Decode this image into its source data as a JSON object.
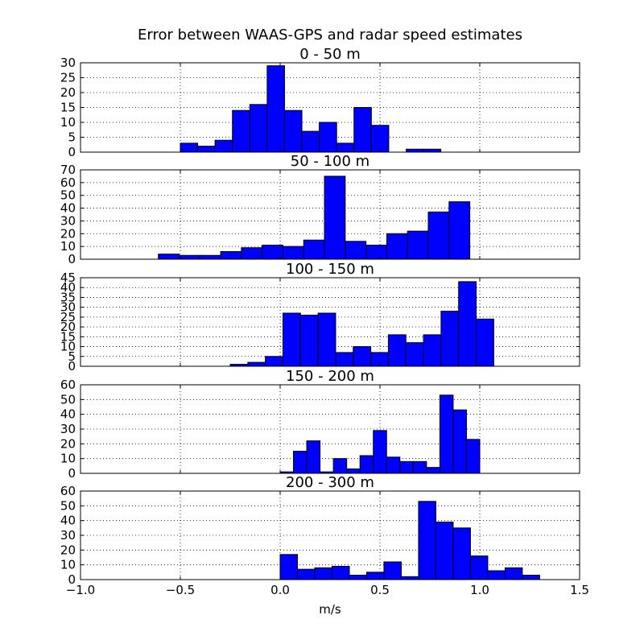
{
  "figure": {
    "title": "Error between WAAS-GPS and radar speed estimates",
    "xlabel": "m/s"
  },
  "chart_data": [
    {
      "type": "bar",
      "title": "0 - 50 m",
      "xlim": [
        -1.0,
        1.5
      ],
      "ylim": [
        0,
        30
      ],
      "yticks": [
        0,
        5,
        10,
        15,
        20,
        25,
        30
      ],
      "xticks": [
        -1.0,
        -0.5,
        0.0,
        0.5,
        1.0,
        1.5
      ],
      "show_xticklabels": false,
      "grid": true,
      "bins": [
        {
          "x0": -0.5,
          "x1": -0.413,
          "value": 3
        },
        {
          "x0": -0.413,
          "x1": -0.326,
          "value": 2
        },
        {
          "x0": -0.326,
          "x1": -0.239,
          "value": 4
        },
        {
          "x0": -0.239,
          "x1": -0.152,
          "value": 14
        },
        {
          "x0": -0.152,
          "x1": -0.065,
          "value": 16
        },
        {
          "x0": -0.065,
          "x1": 0.022,
          "value": 29
        },
        {
          "x0": 0.022,
          "x1": 0.109,
          "value": 14
        },
        {
          "x0": 0.109,
          "x1": 0.196,
          "value": 7
        },
        {
          "x0": 0.196,
          "x1": 0.283,
          "value": 10
        },
        {
          "x0": 0.283,
          "x1": 0.37,
          "value": 3
        },
        {
          "x0": 0.37,
          "x1": 0.457,
          "value": 15
        },
        {
          "x0": 0.457,
          "x1": 0.544,
          "value": 9
        },
        {
          "x0": 0.544,
          "x1": 0.631,
          "value": 0
        },
        {
          "x0": 0.631,
          "x1": 0.718,
          "value": 1
        },
        {
          "x0": 0.718,
          "x1": 0.805,
          "value": 1
        }
      ]
    },
    {
      "type": "bar",
      "title": "50 - 100 m",
      "xlim": [
        -1.0,
        1.5
      ],
      "ylim": [
        0,
        70
      ],
      "yticks": [
        0,
        10,
        20,
        30,
        40,
        50,
        60,
        70
      ],
      "xticks": [
        -1.0,
        -0.5,
        0.0,
        0.5,
        1.0,
        1.5
      ],
      "show_xticklabels": false,
      "grid": true,
      "bins": [
        {
          "x0": -0.61,
          "x1": -0.506,
          "value": 4
        },
        {
          "x0": -0.506,
          "x1": -0.402,
          "value": 3
        },
        {
          "x0": -0.402,
          "x1": -0.298,
          "value": 3
        },
        {
          "x0": -0.298,
          "x1": -0.194,
          "value": 6
        },
        {
          "x0": -0.194,
          "x1": -0.09,
          "value": 9
        },
        {
          "x0": -0.09,
          "x1": 0.014,
          "value": 11
        },
        {
          "x0": 0.014,
          "x1": 0.118,
          "value": 10
        },
        {
          "x0": 0.118,
          "x1": 0.222,
          "value": 15
        },
        {
          "x0": 0.222,
          "x1": 0.326,
          "value": 65
        },
        {
          "x0": 0.326,
          "x1": 0.43,
          "value": 14
        },
        {
          "x0": 0.43,
          "x1": 0.534,
          "value": 11
        },
        {
          "x0": 0.534,
          "x1": 0.638,
          "value": 20
        },
        {
          "x0": 0.638,
          "x1": 0.742,
          "value": 22
        },
        {
          "x0": 0.742,
          "x1": 0.846,
          "value": 37
        },
        {
          "x0": 0.846,
          "x1": 0.95,
          "value": 45
        }
      ]
    },
    {
      "type": "bar",
      "title": "100 - 150 m",
      "xlim": [
        -1.0,
        1.5
      ],
      "ylim": [
        0,
        45
      ],
      "yticks": [
        0,
        5,
        10,
        15,
        20,
        25,
        30,
        35,
        40,
        45
      ],
      "xticks": [
        -1.0,
        -0.5,
        0.0,
        0.5,
        1.0,
        1.5
      ],
      "show_xticklabels": false,
      "grid": true,
      "bins": [
        {
          "x0": -0.25,
          "x1": -0.162,
          "value": 1
        },
        {
          "x0": -0.162,
          "x1": -0.074,
          "value": 2
        },
        {
          "x0": -0.074,
          "x1": 0.014,
          "value": 5
        },
        {
          "x0": 0.014,
          "x1": 0.102,
          "value": 27
        },
        {
          "x0": 0.102,
          "x1": 0.19,
          "value": 26
        },
        {
          "x0": 0.19,
          "x1": 0.278,
          "value": 27
        },
        {
          "x0": 0.278,
          "x1": 0.366,
          "value": 7
        },
        {
          "x0": 0.366,
          "x1": 0.454,
          "value": 10
        },
        {
          "x0": 0.454,
          "x1": 0.542,
          "value": 7
        },
        {
          "x0": 0.542,
          "x1": 0.63,
          "value": 16
        },
        {
          "x0": 0.63,
          "x1": 0.718,
          "value": 12
        },
        {
          "x0": 0.718,
          "x1": 0.806,
          "value": 16
        },
        {
          "x0": 0.806,
          "x1": 0.894,
          "value": 28
        },
        {
          "x0": 0.894,
          "x1": 0.982,
          "value": 43
        },
        {
          "x0": 0.982,
          "x1": 1.07,
          "value": 24
        }
      ]
    },
    {
      "type": "bar",
      "title": "150 - 200 m",
      "xlim": [
        -1.0,
        1.5
      ],
      "ylim": [
        0,
        60
      ],
      "yticks": [
        0,
        10,
        20,
        30,
        40,
        50,
        60
      ],
      "xticks": [
        -1.0,
        -0.5,
        0.0,
        0.5,
        1.0,
        1.5
      ],
      "show_xticklabels": false,
      "grid": true,
      "bins": [
        {
          "x0": 0.0,
          "x1": 0.0667,
          "value": 1
        },
        {
          "x0": 0.0667,
          "x1": 0.1333,
          "value": 15
        },
        {
          "x0": 0.1333,
          "x1": 0.2,
          "value": 22
        },
        {
          "x0": 0.2,
          "x1": 0.2667,
          "value": 1
        },
        {
          "x0": 0.2667,
          "x1": 0.3333,
          "value": 10
        },
        {
          "x0": 0.3333,
          "x1": 0.4,
          "value": 3
        },
        {
          "x0": 0.4,
          "x1": 0.4667,
          "value": 12
        },
        {
          "x0": 0.4667,
          "x1": 0.5333,
          "value": 29
        },
        {
          "x0": 0.5333,
          "x1": 0.6,
          "value": 11
        },
        {
          "x0": 0.6,
          "x1": 0.6667,
          "value": 8
        },
        {
          "x0": 0.6667,
          "x1": 0.7333,
          "value": 8
        },
        {
          "x0": 0.7333,
          "x1": 0.8,
          "value": 4
        },
        {
          "x0": 0.8,
          "x1": 0.8667,
          "value": 53
        },
        {
          "x0": 0.8667,
          "x1": 0.9333,
          "value": 43
        },
        {
          "x0": 0.9333,
          "x1": 1.0,
          "value": 23
        }
      ]
    },
    {
      "type": "bar",
      "title": "200 - 300 m",
      "xlim": [
        -1.0,
        1.5
      ],
      "ylim": [
        0,
        60
      ],
      "yticks": [
        0,
        10,
        20,
        30,
        40,
        50,
        60
      ],
      "xticks": [
        -1.0,
        -0.5,
        0.0,
        0.5,
        1.0,
        1.5
      ],
      "xticklabels": [
        "−1.0",
        "−0.5",
        "0.0",
        "0.5",
        "1.0",
        "1.5"
      ],
      "show_xticklabels": true,
      "grid": true,
      "bins": [
        {
          "x0": 0.0,
          "x1": 0.0867,
          "value": 17
        },
        {
          "x0": 0.0867,
          "x1": 0.1733,
          "value": 7
        },
        {
          "x0": 0.1733,
          "x1": 0.26,
          "value": 8
        },
        {
          "x0": 0.26,
          "x1": 0.3467,
          "value": 9
        },
        {
          "x0": 0.3467,
          "x1": 0.4333,
          "value": 3
        },
        {
          "x0": 0.4333,
          "x1": 0.52,
          "value": 5
        },
        {
          "x0": 0.52,
          "x1": 0.6067,
          "value": 12
        },
        {
          "x0": 0.6067,
          "x1": 0.6933,
          "value": 2
        },
        {
          "x0": 0.6933,
          "x1": 0.78,
          "value": 53
        },
        {
          "x0": 0.78,
          "x1": 0.8667,
          "value": 39
        },
        {
          "x0": 0.8667,
          "x1": 0.9533,
          "value": 35
        },
        {
          "x0": 0.9533,
          "x1": 1.04,
          "value": 16
        },
        {
          "x0": 1.04,
          "x1": 1.1267,
          "value": 6
        },
        {
          "x0": 1.1267,
          "x1": 1.2133,
          "value": 8
        },
        {
          "x0": 1.2133,
          "x1": 1.3,
          "value": 3
        }
      ]
    }
  ]
}
